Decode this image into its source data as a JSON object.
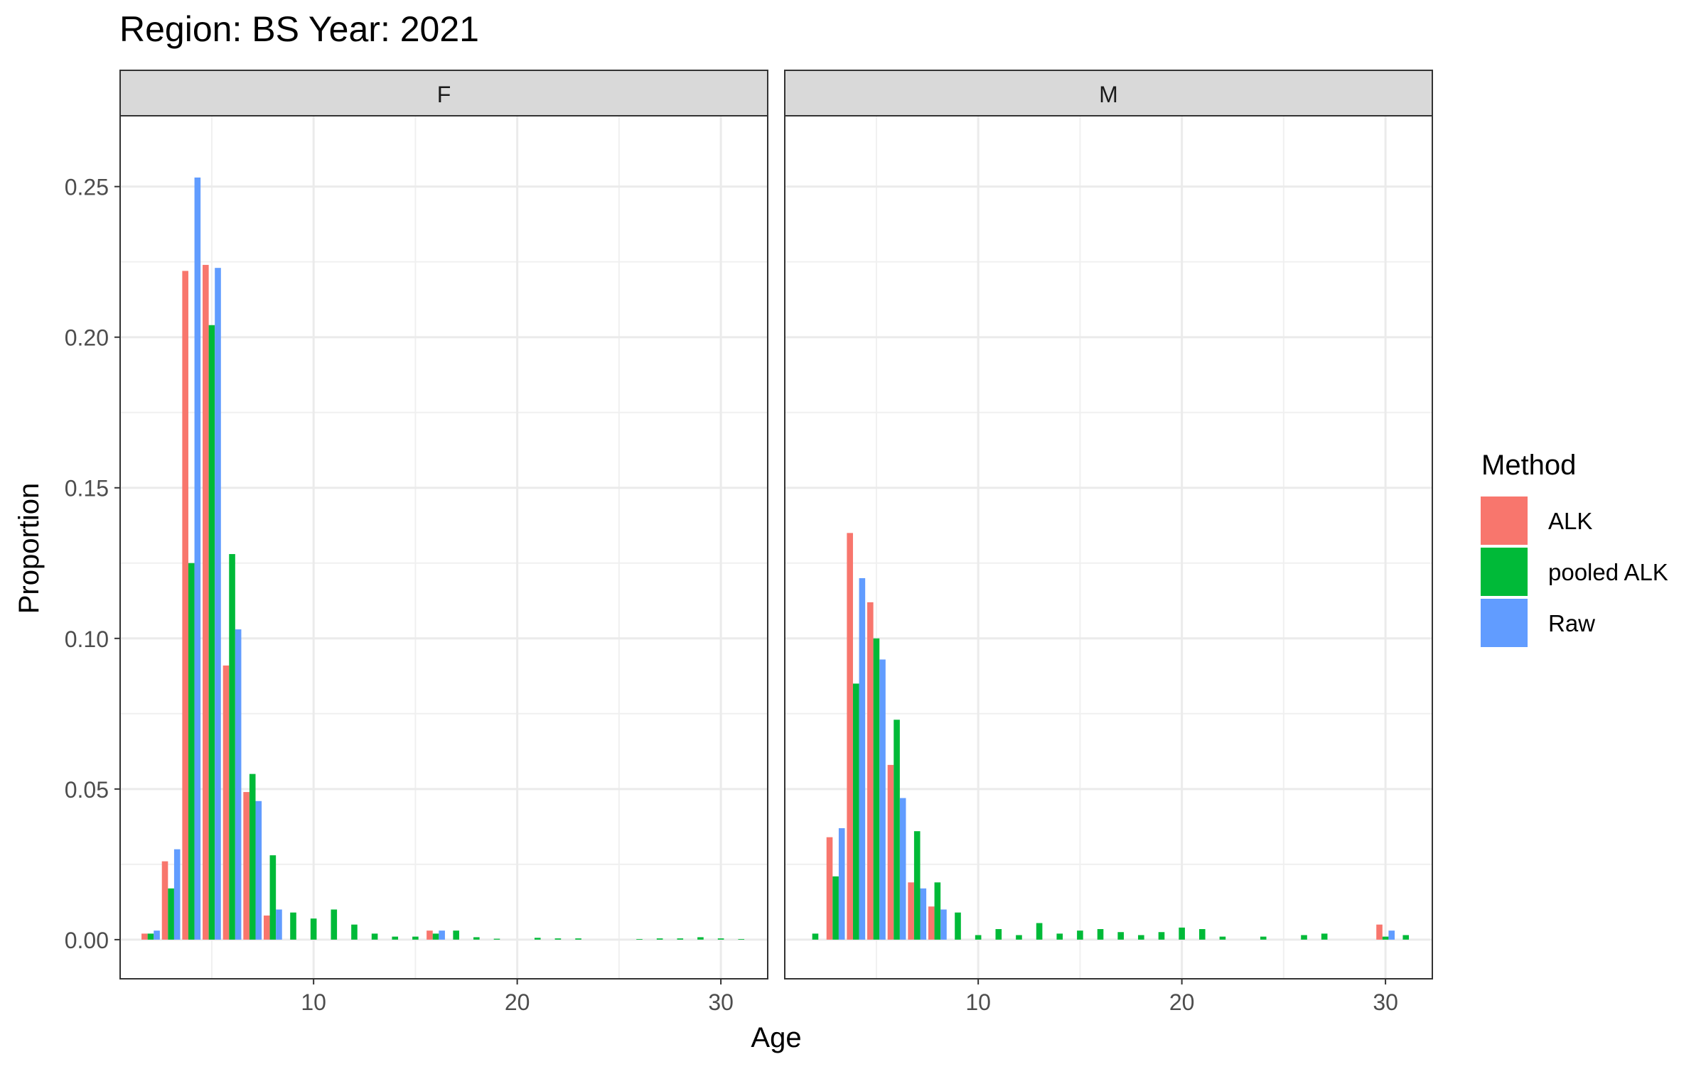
{
  "chart_data": {
    "type": "bar",
    "title": "Region: BS Year: 2021",
    "xlabel": "Age",
    "ylabel": "Proportion",
    "ylim": [
      -0.013,
      0.2735
    ],
    "yticks": [
      0.0,
      0.05,
      0.1,
      0.15,
      0.2,
      0.25
    ],
    "ytick_labels": [
      "0.00",
      "0.05",
      "0.10",
      "0.15",
      "0.20",
      "0.25"
    ],
    "xticks": [
      10,
      20,
      30
    ],
    "xtick_labels": [
      "10",
      "20",
      "30"
    ],
    "grid": true,
    "legend": {
      "title": "Method",
      "placement": "right",
      "entries": [
        {
          "name": "ALK",
          "color": "#F8766D"
        },
        {
          "name": "pooled ALK",
          "color": "#00BA38"
        },
        {
          "name": "Raw",
          "color": "#619CFF"
        }
      ]
    },
    "facets": [
      {
        "label": "F",
        "xlim": [
          0.5,
          32.3
        ],
        "series": [
          {
            "name": "ALK",
            "color": "#F8766D",
            "points": [
              [
                2,
                0.002
              ],
              [
                3,
                0.026
              ],
              [
                4,
                0.222
              ],
              [
                5,
                0.224
              ],
              [
                6,
                0.091
              ],
              [
                7,
                0.049
              ],
              [
                8,
                0.008
              ],
              [
                16,
                0.003
              ]
            ]
          },
          {
            "name": "pooled ALK",
            "color": "#00BA38",
            "points": [
              [
                2,
                0.002
              ],
              [
                3,
                0.017
              ],
              [
                4,
                0.125
              ],
              [
                5,
                0.204
              ],
              [
                6,
                0.128
              ],
              [
                7,
                0.055
              ],
              [
                8,
                0.028
              ],
              [
                9,
                0.009
              ],
              [
                10,
                0.007
              ],
              [
                11,
                0.01
              ],
              [
                12,
                0.005
              ],
              [
                13,
                0.002
              ],
              [
                14,
                0.001
              ],
              [
                15,
                0.001
              ],
              [
                16,
                0.002
              ],
              [
                17,
                0.003
              ],
              [
                18,
                0.0008
              ],
              [
                19,
                0.0003
              ],
              [
                21,
                0.0006
              ],
              [
                22,
                0.0004
              ],
              [
                23,
                0.0004
              ],
              [
                26,
                0.0002
              ],
              [
                27,
                0.0004
              ],
              [
                28,
                0.0004
              ],
              [
                29,
                0.0008
              ],
              [
                30,
                0.0004
              ],
              [
                31,
                0.0002
              ]
            ]
          },
          {
            "name": "Raw",
            "color": "#619CFF",
            "points": [
              [
                2,
                0.003
              ],
              [
                3,
                0.03
              ],
              [
                4,
                0.253
              ],
              [
                5,
                0.223
              ],
              [
                6,
                0.103
              ],
              [
                7,
                0.046
              ],
              [
                8,
                0.01
              ],
              [
                16,
                0.003
              ]
            ]
          }
        ]
      },
      {
        "label": "M",
        "xlim": [
          0.5,
          32.3
        ],
        "series": [
          {
            "name": "ALK",
            "color": "#F8766D",
            "points": [
              [
                3,
                0.034
              ],
              [
                4,
                0.135
              ],
              [
                5,
                0.112
              ],
              [
                6,
                0.058
              ],
              [
                7,
                0.019
              ],
              [
                8,
                0.011
              ],
              [
                30,
                0.005
              ]
            ]
          },
          {
            "name": "pooled ALK",
            "color": "#00BA38",
            "points": [
              [
                2,
                0.002
              ],
              [
                3,
                0.021
              ],
              [
                4,
                0.085
              ],
              [
                5,
                0.1
              ],
              [
                6,
                0.073
              ],
              [
                7,
                0.036
              ],
              [
                8,
                0.019
              ],
              [
                9,
                0.009
              ],
              [
                10,
                0.0015
              ],
              [
                11,
                0.0035
              ],
              [
                12,
                0.0015
              ],
              [
                13,
                0.0055
              ],
              [
                14,
                0.002
              ],
              [
                15,
                0.003
              ],
              [
                16,
                0.0035
              ],
              [
                17,
                0.0025
              ],
              [
                18,
                0.0015
              ],
              [
                19,
                0.0025
              ],
              [
                20,
                0.004
              ],
              [
                21,
                0.0035
              ],
              [
                22,
                0.001
              ],
              [
                24,
                0.001
              ],
              [
                26,
                0.0015
              ],
              [
                27,
                0.002
              ],
              [
                30,
                0.001
              ],
              [
                31,
                0.0015
              ]
            ]
          },
          {
            "name": "Raw",
            "color": "#619CFF",
            "points": [
              [
                3,
                0.037
              ],
              [
                4,
                0.12
              ],
              [
                5,
                0.093
              ],
              [
                6,
                0.047
              ],
              [
                7,
                0.017
              ],
              [
                8,
                0.01
              ],
              [
                30,
                0.003
              ]
            ]
          }
        ]
      }
    ]
  }
}
